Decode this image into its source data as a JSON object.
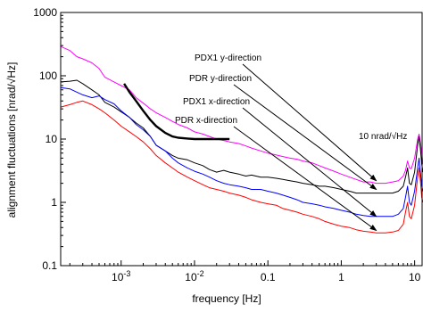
{
  "chart_data": {
    "type": "line",
    "xlabel": "frequency [Hz]",
    "ylabel": "alignment fluctuations [nrad/√Hz]",
    "xscale": "log",
    "yscale": "log",
    "xlim": [
      0.00015,
      13
    ],
    "ylim": [
      0.1,
      1000
    ],
    "xticks": [
      {
        "value": 0.001,
        "base": "10",
        "exp": "-3"
      },
      {
        "value": 0.01,
        "base": "10",
        "exp": "-2"
      },
      {
        "value": 0.1,
        "label": "0.1"
      },
      {
        "value": 1,
        "label": "1"
      },
      {
        "value": 10,
        "label": "10"
      }
    ],
    "yticks": [
      {
        "value": 0.1,
        "label": "0.1"
      },
      {
        "value": 1,
        "label": "1"
      },
      {
        "value": 10,
        "label": "10"
      },
      {
        "value": 100,
        "label": "100"
      },
      {
        "value": 1000,
        "label": "1000"
      }
    ],
    "grid": false,
    "series": [
      {
        "name": "PDX1 y-direction",
        "color": "#ff00ff",
        "x": [
          0.00015,
          0.0002,
          0.00025,
          0.0003,
          0.0004,
          0.0005,
          0.0006,
          0.0008,
          0.001,
          0.0013,
          0.0016,
          0.002,
          0.0025,
          0.003,
          0.004,
          0.005,
          0.006,
          0.008,
          0.01,
          0.013,
          0.016,
          0.02,
          0.025,
          0.03,
          0.04,
          0.05,
          0.06,
          0.08,
          0.1,
          0.13,
          0.16,
          0.2,
          0.25,
          0.3,
          0.4,
          0.5,
          0.6,
          0.8,
          1,
          1.3,
          1.6,
          2,
          2.5,
          3,
          4,
          5,
          6,
          7,
          7.5,
          8,
          8.5,
          9,
          10,
          11,
          11.5,
          12,
          12.5,
          13
        ],
        "y": [
          290,
          250,
          200,
          185,
          160,
          130,
          95,
          80,
          70,
          60,
          45,
          37,
          30,
          26,
          22,
          19,
          17,
          15,
          13,
          12,
          11,
          10,
          9.5,
          9,
          8.5,
          7.8,
          7.2,
          6.5,
          6,
          5.6,
          5.3,
          5,
          4.8,
          4.5,
          4.2,
          3.8,
          3.5,
          3.1,
          2.8,
          2.5,
          2.3,
          2.1,
          2.1,
          2.0,
          2.0,
          2.1,
          2.2,
          2.6,
          3.2,
          4.5,
          3.5,
          3.4,
          5,
          10,
          12,
          9,
          6,
          4
        ]
      },
      {
        "name": "PDR y-direction",
        "color": "#000000",
        "x": [
          0.00015,
          0.0002,
          0.00025,
          0.0003,
          0.0004,
          0.0005,
          0.0006,
          0.0008,
          0.001,
          0.0013,
          0.0016,
          0.002,
          0.0025,
          0.003,
          0.004,
          0.005,
          0.006,
          0.008,
          0.01,
          0.013,
          0.016,
          0.02,
          0.025,
          0.03,
          0.04,
          0.05,
          0.06,
          0.08,
          0.1,
          0.13,
          0.16,
          0.2,
          0.25,
          0.3,
          0.4,
          0.5,
          0.6,
          0.8,
          1,
          1.3,
          1.6,
          2,
          2.5,
          3,
          4,
          5,
          6,
          7,
          7.5,
          8,
          8.5,
          9,
          10,
          11,
          11.5,
          12,
          12.5,
          13
        ],
        "y": [
          80,
          82,
          85,
          75,
          60,
          50,
          38,
          32,
          27,
          22,
          18,
          15,
          11,
          8,
          6.5,
          5.5,
          5,
          4.7,
          4.2,
          3.8,
          3.3,
          3,
          3.2,
          3.0,
          2.8,
          2.6,
          2.7,
          2.5,
          2.5,
          2.4,
          2.3,
          2.2,
          2.1,
          2.0,
          1.9,
          1.8,
          1.8,
          1.7,
          1.6,
          1.5,
          1.4,
          1.4,
          1.4,
          1.4,
          1.4,
          1.4,
          1.5,
          1.8,
          2.5,
          3.5,
          2.0,
          1.9,
          3.0,
          8,
          11,
          7,
          4,
          3
        ]
      },
      {
        "name": "PDX1 x-direction",
        "color": "#0000ff",
        "x": [
          0.00015,
          0.0002,
          0.00025,
          0.0003,
          0.0004,
          0.0005,
          0.0006,
          0.0008,
          0.001,
          0.0013,
          0.0016,
          0.002,
          0.0025,
          0.003,
          0.004,
          0.005,
          0.006,
          0.008,
          0.01,
          0.013,
          0.016,
          0.02,
          0.025,
          0.03,
          0.04,
          0.05,
          0.06,
          0.08,
          0.1,
          0.13,
          0.16,
          0.2,
          0.25,
          0.3,
          0.4,
          0.5,
          0.6,
          0.8,
          1,
          1.3,
          1.6,
          2,
          2.5,
          3,
          4,
          5,
          6,
          7,
          7.5,
          8,
          8.5,
          9,
          10,
          11,
          11.5,
          12,
          12.5,
          13
        ],
        "y": [
          65,
          62,
          55,
          50,
          45,
          48,
          42,
          36,
          28,
          22,
          17,
          14,
          11,
          8,
          6.5,
          5,
          4.2,
          3.5,
          3.1,
          2.8,
          2.5,
          2.2,
          2.0,
          1.9,
          1.8,
          1.7,
          1.6,
          1.6,
          1.5,
          1.4,
          1.3,
          1.2,
          1.1,
          1.0,
          0.95,
          0.9,
          0.85,
          0.8,
          0.75,
          0.7,
          0.65,
          0.62,
          0.6,
          0.6,
          0.6,
          0.6,
          0.65,
          0.8,
          1.2,
          1.8,
          1.0,
          0.9,
          1.5,
          3.5,
          5,
          3,
          1.8,
          1.5
        ]
      },
      {
        "name": "PDR x-direction",
        "color": "#ff0000",
        "x": [
          0.00015,
          0.0002,
          0.00025,
          0.0003,
          0.0004,
          0.0005,
          0.0006,
          0.0008,
          0.001,
          0.0013,
          0.0016,
          0.002,
          0.0025,
          0.003,
          0.004,
          0.005,
          0.006,
          0.008,
          0.01,
          0.013,
          0.016,
          0.02,
          0.025,
          0.03,
          0.04,
          0.05,
          0.06,
          0.08,
          0.1,
          0.13,
          0.16,
          0.2,
          0.25,
          0.3,
          0.4,
          0.5,
          0.6,
          0.8,
          1,
          1.3,
          1.6,
          2,
          2.5,
          3,
          4,
          5,
          6,
          7,
          7.5,
          8,
          8.5,
          9,
          10,
          11,
          11.5,
          12,
          12.5,
          13
        ],
        "y": [
          32,
          35,
          38,
          40,
          35,
          30,
          26,
          20,
          16,
          13,
          11,
          9,
          7,
          5.5,
          4.2,
          3.5,
          3.0,
          2.5,
          2.2,
          1.9,
          1.7,
          1.6,
          1.5,
          1.4,
          1.3,
          1.2,
          1.1,
          1.0,
          0.95,
          0.9,
          0.8,
          0.75,
          0.7,
          0.65,
          0.6,
          0.55,
          0.5,
          0.45,
          0.42,
          0.4,
          0.37,
          0.35,
          0.34,
          0.33,
          0.33,
          0.34,
          0.36,
          0.45,
          0.7,
          1.0,
          0.6,
          0.55,
          0.9,
          2.5,
          3.5,
          2.2,
          1.2,
          1.0
        ]
      },
      {
        "name": "10 nrad/√Hz",
        "color": "#000000",
        "x": [
          0.0011,
          0.0013,
          0.0016,
          0.002,
          0.0025,
          0.003,
          0.004,
          0.005,
          0.006,
          0.008,
          0.01,
          0.015,
          0.02,
          0.03
        ],
        "y": [
          75,
          55,
          40,
          28,
          20,
          16,
          12.5,
          11,
          10.5,
          10.2,
          10,
          10,
          10,
          10
        ]
      }
    ],
    "annotations": [
      {
        "text": "PDX1 y-direction",
        "target": [
          3,
          2.2
        ]
      },
      {
        "text": "PDR y-direction",
        "target": [
          3,
          1.6
        ]
      },
      {
        "text": "PDX1 x-direction",
        "target": [
          3,
          0.6
        ]
      },
      {
        "text": "PDR x-direction",
        "target": [
          3,
          0.36
        ]
      },
      {
        "text": "10 nrad/√Hz"
      }
    ]
  }
}
